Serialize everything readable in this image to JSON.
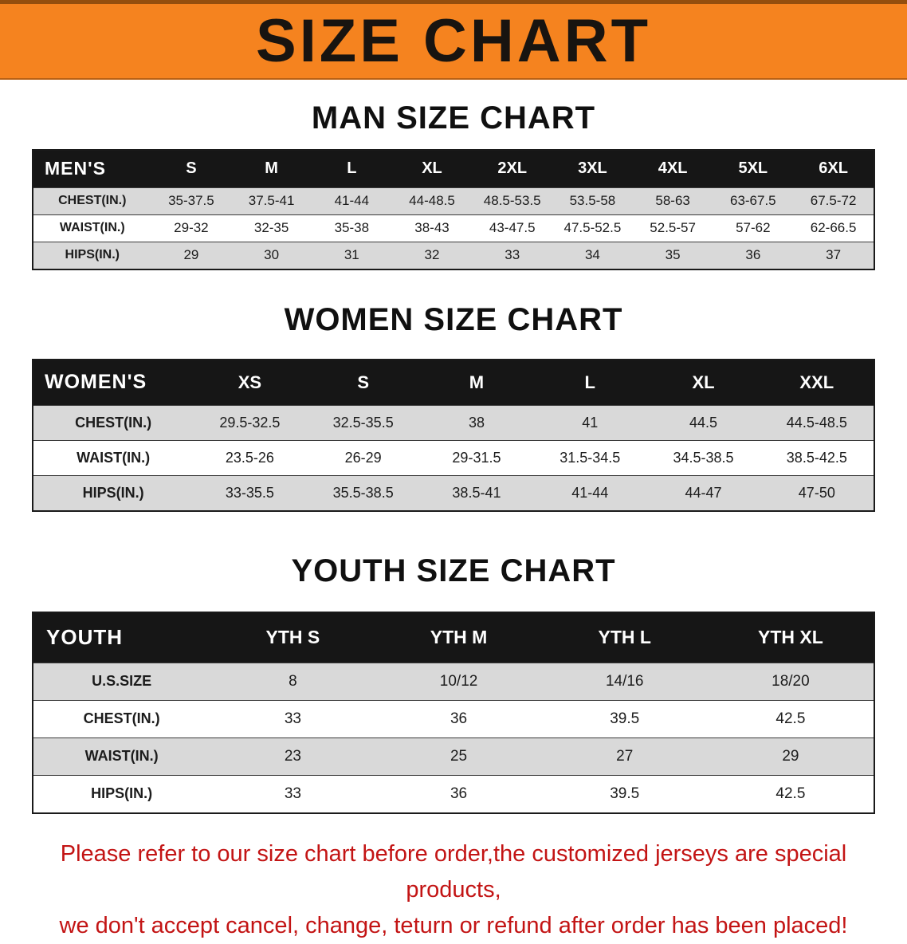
{
  "banner": {
    "title": "SIZE CHART"
  },
  "man": {
    "title": "MAN SIZE CHART",
    "table": {
      "header": [
        "MEN'S",
        "S",
        "M",
        "L",
        "XL",
        "2XL",
        "3XL",
        "4XL",
        "5XL",
        "6XL"
      ],
      "rows": [
        [
          "CHEST(IN.)",
          "35-37.5",
          "37.5-41",
          "41-44",
          "44-48.5",
          "48.5-53.5",
          "53.5-58",
          "58-63",
          "63-67.5",
          "67.5-72"
        ],
        [
          "WAIST(IN.)",
          "29-32",
          "32-35",
          "35-38",
          "38-43",
          "43-47.5",
          "47.5-52.5",
          "52.5-57",
          "57-62",
          "62-66.5"
        ],
        [
          "HIPS(IN.)",
          "29",
          "30",
          "31",
          "32",
          "33",
          "34",
          "35",
          "36",
          "37"
        ]
      ]
    }
  },
  "women": {
    "title": "WOMEN SIZE CHART",
    "table": {
      "header": [
        "WOMEN'S",
        "XS",
        "S",
        "M",
        "L",
        "XL",
        "XXL"
      ],
      "rows": [
        [
          "CHEST(IN.)",
          "29.5-32.5",
          "32.5-35.5",
          "38",
          "41",
          "44.5",
          "44.5-48.5"
        ],
        [
          "WAIST(IN.)",
          "23.5-26",
          "26-29",
          "29-31.5",
          "31.5-34.5",
          "34.5-38.5",
          "38.5-42.5"
        ],
        [
          "HIPS(IN.)",
          "33-35.5",
          "35.5-38.5",
          "38.5-41",
          "41-44",
          "44-47",
          "47-50"
        ]
      ]
    }
  },
  "youth": {
    "title": "YOUTH SIZE CHART",
    "table": {
      "header": [
        "YOUTH",
        "YTH S",
        "YTH M",
        "YTH L",
        "YTH XL"
      ],
      "rows": [
        [
          "U.S.SIZE",
          "8",
          "10/12",
          "14/16",
          "18/20"
        ],
        [
          "CHEST(IN.)",
          "33",
          "36",
          "39.5",
          "42.5"
        ],
        [
          "WAIST(IN.)",
          "23",
          "25",
          "27",
          "29"
        ],
        [
          "HIPS(IN.)",
          "33",
          "36",
          "39.5",
          "42.5"
        ]
      ]
    }
  },
  "footer": {
    "line1": "Please refer to our size chart before order,the customized jerseys are special products,",
    "line2": "we don't accept cancel, change, teturn or refund after order has been placed!"
  },
  "colors": {
    "banner_bg": "#f5831f",
    "banner_text": "#181410",
    "table_header_bg": "#161616",
    "table_header_text": "#ffffff",
    "alt_row_bg": "#d9d9d9",
    "footer_text": "#c31414"
  }
}
